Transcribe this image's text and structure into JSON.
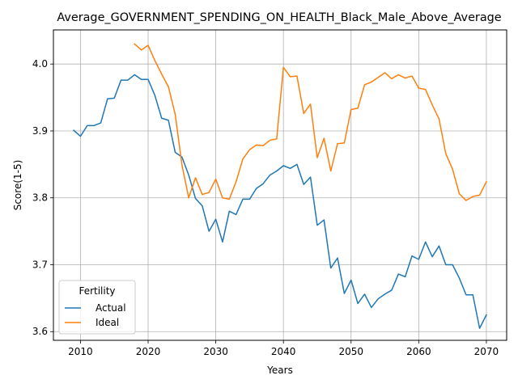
{
  "chart_data": {
    "type": "line",
    "title": "Average_GOVERNMENT_SPENDING_ON_HEALTH_Black_Male_Above_Average",
    "xlabel": "Years",
    "ylabel": "Score(1-5)",
    "xlim": [
      2006,
      2073
    ],
    "ylim": [
      3.587,
      4.051
    ],
    "xticks": [
      2010,
      2020,
      2030,
      2040,
      2050,
      2060,
      2070
    ],
    "yticks": [
      3.6,
      3.7,
      3.8,
      3.9,
      4.0
    ],
    "grid": true,
    "legend": {
      "title": "Fertility",
      "placement": "lower-left"
    },
    "series": [
      {
        "name": "Actual",
        "color": "#1f77b4",
        "x": [
          2009,
          2010,
          2011,
          2012,
          2013,
          2014,
          2015,
          2016,
          2017,
          2018,
          2019,
          2020,
          2021,
          2022,
          2023,
          2024,
          2025,
          2026,
          2027,
          2028,
          2029,
          2030,
          2031,
          2032,
          2033,
          2034,
          2035,
          2036,
          2037,
          2038,
          2039,
          2040,
          2041,
          2042,
          2043,
          2044,
          2045,
          2046,
          2047,
          2048,
          2049,
          2050,
          2051,
          2052,
          2053,
          2054,
          2055,
          2056,
          2057,
          2058,
          2059,
          2060,
          2061,
          2062,
          2063,
          2064,
          2065,
          2066,
          2067,
          2068,
          2069,
          2070
        ],
        "values": [
          3.901,
          3.892,
          3.908,
          3.908,
          3.912,
          3.948,
          3.949,
          3.976,
          3.976,
          3.984,
          3.977,
          3.977,
          3.953,
          3.919,
          3.916,
          3.868,
          3.861,
          3.834,
          3.799,
          3.788,
          3.75,
          3.768,
          3.734,
          3.78,
          3.775,
          3.798,
          3.798,
          3.814,
          3.821,
          3.834,
          3.84,
          3.848,
          3.844,
          3.85,
          3.82,
          3.831,
          3.759,
          3.767,
          3.695,
          3.71,
          3.657,
          3.677,
          3.642,
          3.656,
          3.636,
          3.649,
          3.656,
          3.662,
          3.686,
          3.682,
          3.713,
          3.708,
          3.734,
          3.712,
          3.728,
          3.7,
          3.7,
          3.68,
          3.655,
          3.655,
          3.605,
          3.625
        ]
      },
      {
        "name": "Ideal",
        "color": "#ff7f0e",
        "x": [
          2018,
          2019,
          2020,
          2021,
          2022,
          2023,
          2024,
          2025,
          2026,
          2027,
          2028,
          2029,
          2030,
          2031,
          2032,
          2033,
          2034,
          2035,
          2036,
          2037,
          2038,
          2039,
          2040,
          2041,
          2042,
          2043,
          2044,
          2045,
          2046,
          2047,
          2048,
          2049,
          2050,
          2051,
          2052,
          2053,
          2054,
          2055,
          2056,
          2057,
          2058,
          2059,
          2060,
          2061,
          2062,
          2063,
          2064,
          2065,
          2066,
          2067,
          2068,
          2069,
          2070
        ],
        "values": [
          4.03,
          4.021,
          4.028,
          4.005,
          3.985,
          3.966,
          3.925,
          3.849,
          3.8,
          3.83,
          3.805,
          3.808,
          3.828,
          3.8,
          3.798,
          3.824,
          3.858,
          3.872,
          3.879,
          3.878,
          3.886,
          3.888,
          3.995,
          3.981,
          3.982,
          3.926,
          3.94,
          3.86,
          3.889,
          3.84,
          3.881,
          3.882,
          3.932,
          3.934,
          3.969,
          3.973,
          3.98,
          3.987,
          3.978,
          3.984,
          3.979,
          3.982,
          3.964,
          3.962,
          3.939,
          3.918,
          3.866,
          3.843,
          3.806,
          3.796,
          3.802,
          3.804,
          3.824
        ]
      }
    ]
  }
}
